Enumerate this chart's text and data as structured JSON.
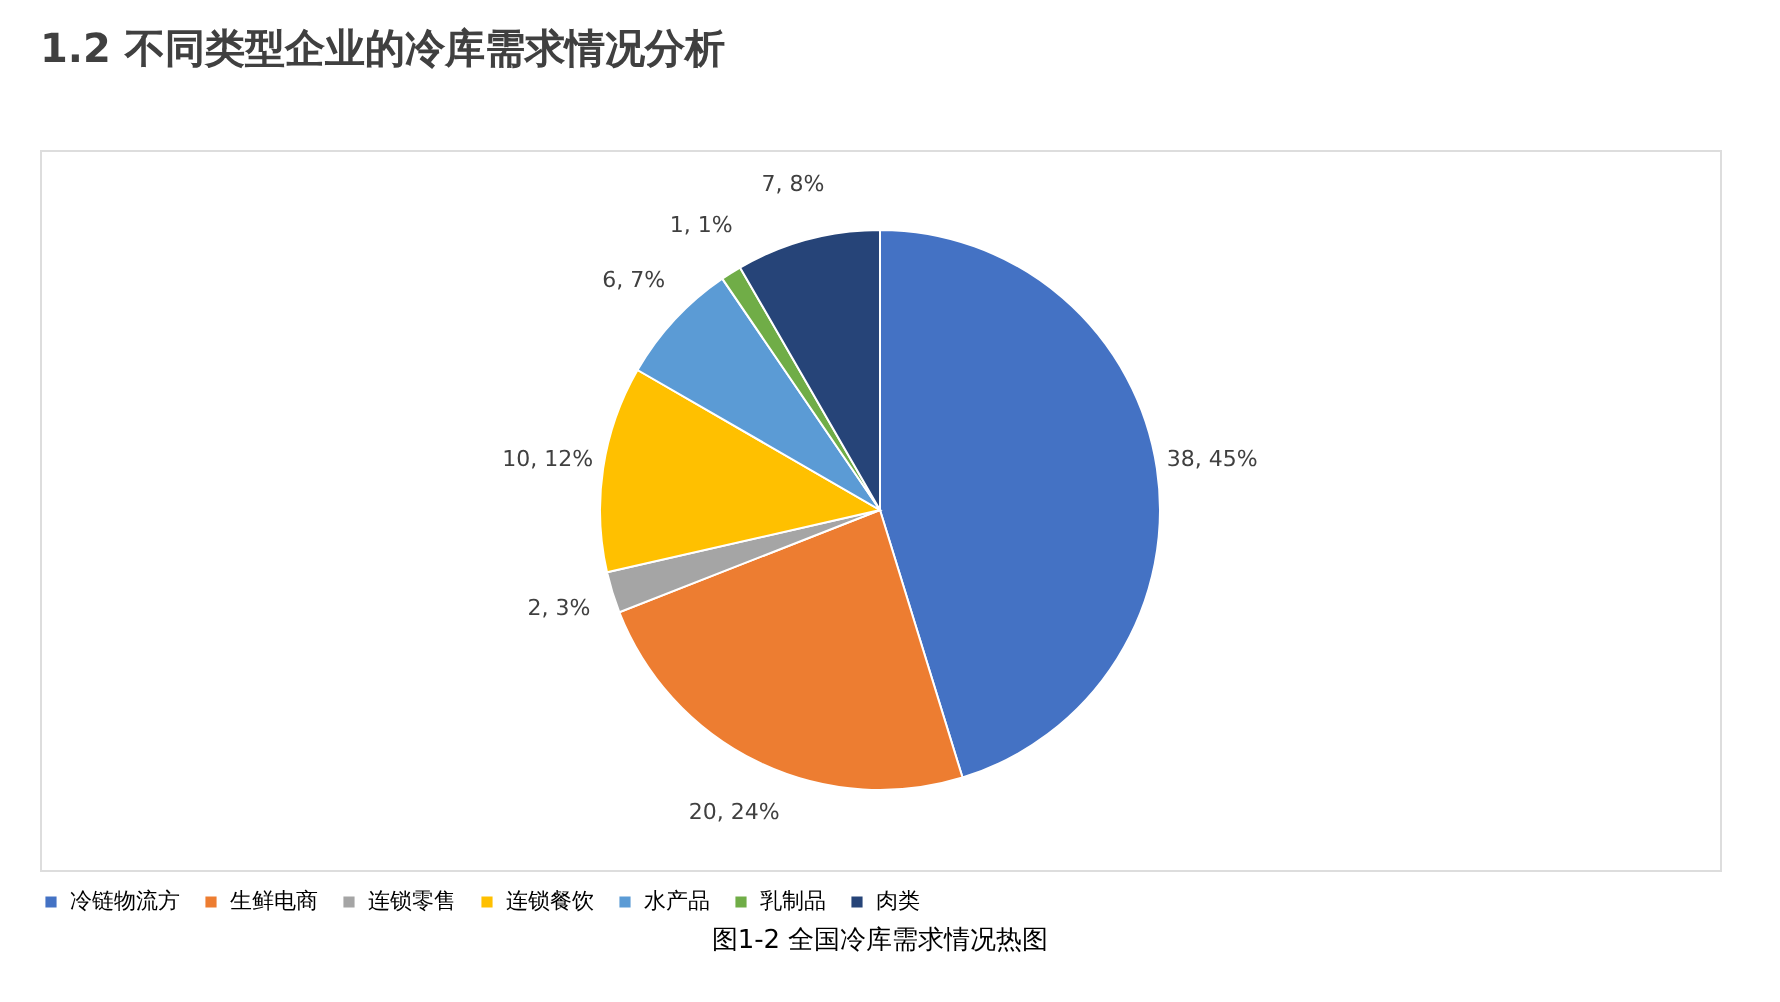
{
  "chart_data": {
    "type": "pie",
    "title": "1.2  不同类型企业的冷库需求情况分析",
    "categories": [
      "冷链物流方",
      "生鲜电商",
      "连锁零售",
      "连锁餐饮",
      "水产品",
      "乳制品",
      "肉类"
    ],
    "values": [
      38,
      20,
      2,
      10,
      6,
      1,
      7
    ],
    "value_labels": [
      "38, 45%",
      "20, 24%",
      "2, 3%",
      "10, 12%",
      "6, 7%",
      "1, 1%",
      "7, 8%"
    ],
    "colors": [
      "#4472c4",
      "#ed7d31",
      "#a5a5a5",
      "#ffc000",
      "#5b9bd5",
      "#70ad47",
      "#264478"
    ],
    "legend": "bottom",
    "annotations": [
      "图1-2 全国冷库需求情况热图"
    ]
  }
}
